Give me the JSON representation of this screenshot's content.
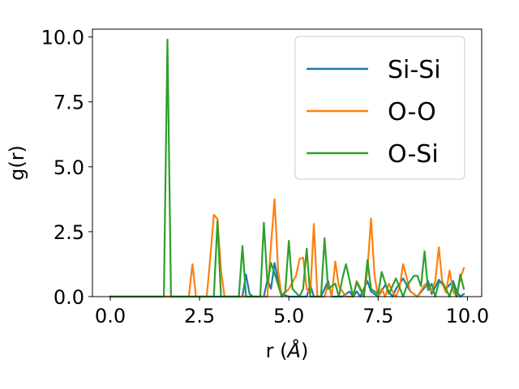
{
  "chart_data": {
    "type": "line",
    "title": "",
    "xlabel": "r (",
    "xlabel_symbol": "Å",
    "xlabel_close": ")",
    "ylabel": "g(r)",
    "xlim": [
      -0.5,
      10.4
    ],
    "ylim": [
      0,
      10.3
    ],
    "xticks": [
      0.0,
      2.5,
      5.0,
      7.5,
      10.0
    ],
    "xtick_labels": [
      "0.0",
      "2.5",
      "5.0",
      "7.5",
      "10.0"
    ],
    "yticks": [
      0.0,
      2.5,
      5.0,
      7.5,
      10.0
    ],
    "ytick_labels": [
      "0.0",
      "2.5",
      "5.0",
      "7.5",
      "10.0"
    ],
    "grid": false,
    "legend_position": "top-right",
    "series": [
      {
        "name": "Si-Si",
        "color": "#1f77b4",
        "x": [
          0.0,
          1.5,
          2.0,
          2.5,
          3.0,
          3.5,
          3.7,
          3.8,
          3.9,
          4.0,
          4.3,
          4.4,
          4.5,
          4.6,
          4.7,
          4.8,
          5.0,
          5.5,
          5.6,
          5.7,
          5.9,
          6.0,
          6.1,
          6.2,
          6.5,
          6.7,
          6.8,
          6.9,
          7.0,
          7.2,
          7.3,
          7.5,
          7.7,
          7.8,
          7.9,
          8.0,
          8.2,
          8.4,
          8.6,
          8.8,
          8.9,
          9.0,
          9.2,
          9.4,
          9.6,
          9.7,
          9.8,
          9.9
        ],
        "y": [
          0.0,
          0.0,
          0.0,
          0.0,
          0.0,
          0.0,
          0.0,
          0.85,
          0.1,
          0.0,
          0.0,
          0.65,
          0.3,
          1.3,
          0.6,
          0.1,
          0.0,
          0.0,
          0.45,
          0.0,
          0.0,
          0.3,
          0.6,
          0.0,
          0.0,
          0.2,
          0.0,
          0.2,
          0.0,
          0.6,
          0.2,
          0.0,
          0.45,
          0.2,
          0.0,
          0.3,
          0.7,
          0.2,
          0.0,
          0.35,
          0.6,
          0.1,
          0.65,
          0.3,
          0.6,
          0.2,
          0.0,
          0.1
        ]
      },
      {
        "name": "O-O",
        "color": "#ff7f0e",
        "x": [
          0.0,
          2.2,
          2.3,
          2.4,
          2.7,
          2.8,
          2.9,
          3.0,
          3.1,
          3.2,
          4.4,
          4.5,
          4.6,
          4.7,
          4.8,
          5.0,
          5.2,
          5.3,
          5.4,
          5.5,
          5.6,
          5.7,
          5.8,
          6.0,
          6.1,
          6.2,
          6.3,
          6.4,
          6.6,
          6.8,
          6.9,
          7.0,
          7.1,
          7.2,
          7.3,
          7.4,
          7.5,
          7.6,
          7.7,
          7.8,
          7.9,
          8.0,
          8.1,
          8.2,
          8.4,
          8.6,
          8.8,
          9.0,
          9.1,
          9.2,
          9.3,
          9.4,
          9.5,
          9.6,
          9.7,
          9.8,
          9.9
        ],
        "y": [
          0.0,
          0.0,
          1.25,
          0.0,
          0.0,
          1.5,
          3.15,
          3.0,
          1.0,
          0.0,
          0.0,
          2.0,
          3.75,
          1.0,
          0.0,
          0.3,
          0.8,
          1.45,
          1.5,
          0.3,
          0.1,
          2.8,
          0.0,
          0.0,
          0.5,
          0.0,
          1.35,
          0.4,
          0.0,
          0.0,
          0.6,
          0.35,
          0.0,
          1.0,
          3.0,
          0.8,
          0.0,
          0.3,
          0.0,
          0.5,
          0.2,
          0.0,
          0.35,
          1.25,
          0.2,
          0.0,
          0.45,
          0.2,
          0.6,
          1.9,
          0.5,
          0.15,
          1.0,
          0.2,
          0.0,
          0.7,
          1.1
        ]
      },
      {
        "name": "O-Si",
        "color": "#2ca02c",
        "x": [
          0.0,
          1.5,
          1.6,
          1.7,
          2.9,
          3.0,
          3.1,
          3.6,
          3.7,
          3.8,
          4.2,
          4.3,
          4.4,
          4.5,
          4.6,
          4.8,
          4.9,
          5.0,
          5.1,
          5.3,
          5.4,
          5.5,
          5.6,
          5.9,
          6.0,
          6.1,
          6.3,
          6.4,
          6.5,
          6.6,
          6.8,
          6.9,
          7.1,
          7.2,
          7.3,
          7.5,
          7.6,
          7.8,
          8.0,
          8.2,
          8.3,
          8.5,
          8.6,
          8.7,
          8.8,
          8.9,
          9.0,
          9.1,
          9.2,
          9.3,
          9.4,
          9.5,
          9.6,
          9.7,
          9.8,
          9.9
        ],
        "y": [
          0.0,
          0.0,
          9.9,
          0.0,
          0.0,
          2.9,
          0.0,
          0.0,
          1.95,
          0.0,
          0.0,
          2.85,
          0.5,
          1.3,
          0.9,
          0.0,
          0.2,
          2.15,
          0.3,
          0.0,
          0.3,
          1.85,
          0.0,
          0.0,
          2.25,
          0.3,
          0.5,
          0.0,
          0.7,
          1.25,
          0.0,
          0.55,
          0.0,
          1.4,
          0.3,
          0.1,
          0.95,
          0.1,
          0.7,
          0.0,
          0.4,
          0.8,
          0.8,
          0.4,
          1.75,
          0.25,
          0.5,
          0.0,
          0.55,
          0.55,
          0.3,
          0.0,
          0.5,
          0.0,
          0.85,
          0.3
        ]
      }
    ]
  }
}
